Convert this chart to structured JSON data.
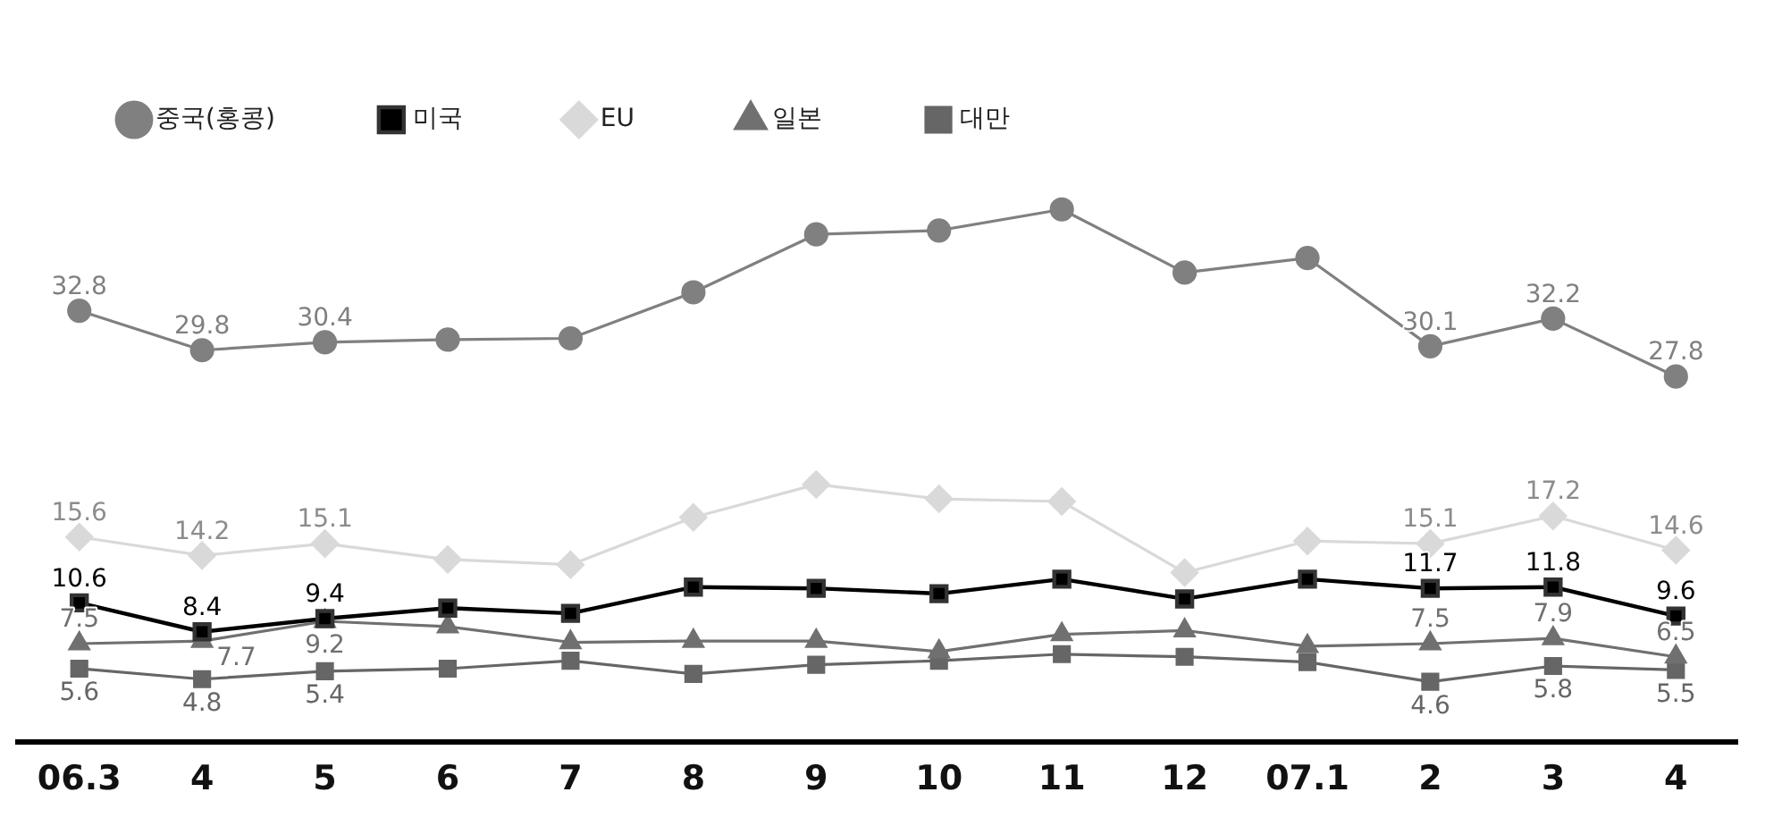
{
  "chart_data": {
    "type": "line",
    "categories": [
      "06.3",
      "4",
      "5",
      "6",
      "7",
      "8",
      "9",
      "10",
      "11",
      "12",
      "07.1",
      "2",
      "3",
      "4"
    ],
    "series": [
      {
        "name": "중국(홍콩)",
        "color": "#808080",
        "marker": "circle",
        "values": [
          32.8,
          29.8,
          30.4,
          30.6,
          30.7,
          34.2,
          38.6,
          38.9,
          40.5,
          35.7,
          36.8,
          30.1,
          32.2,
          27.8
        ],
        "value_labels": [
          "32.8",
          "29.8",
          "30.4",
          null,
          null,
          null,
          null,
          null,
          null,
          null,
          null,
          "30.1",
          "32.2",
          "27.8"
        ]
      },
      {
        "name": "미국",
        "color": "#000000",
        "marker": "square",
        "values": [
          10.6,
          8.4,
          9.4,
          10.2,
          9.8,
          11.8,
          11.7,
          11.3,
          12.4,
          10.9,
          12.4,
          11.7,
          11.8,
          9.6
        ],
        "value_labels": [
          "10.6",
          "8.4",
          "9.4",
          null,
          null,
          null,
          null,
          null,
          null,
          null,
          null,
          "11.7",
          "11.8",
          "9.6"
        ]
      },
      {
        "name": "EU",
        "color": "#d9d9d9",
        "marker": "diamond",
        "values": [
          15.6,
          14.2,
          15.1,
          13.9,
          13.5,
          17.1,
          19.6,
          18.5,
          18.3,
          12.9,
          15.3,
          15.1,
          17.2,
          14.6
        ],
        "value_labels": [
          "15.6",
          "14.2",
          "15.1",
          null,
          null,
          null,
          null,
          null,
          null,
          null,
          null,
          "15.1",
          "17.2",
          "14.6"
        ]
      },
      {
        "name": "일본",
        "color": "#707070",
        "marker": "triangle",
        "values": [
          7.5,
          7.7,
          9.2,
          8.8,
          7.6,
          7.7,
          7.7,
          6.9,
          8.2,
          8.5,
          7.3,
          7.5,
          7.9,
          6.5
        ],
        "value_labels": [
          "7.5",
          "7.7",
          "9.2",
          null,
          null,
          null,
          null,
          null,
          null,
          null,
          null,
          "7.5",
          "7.9",
          "6.5"
        ]
      },
      {
        "name": "대만",
        "color": "#666666",
        "marker": "square",
        "values": [
          5.6,
          4.8,
          5.4,
          5.6,
          6.2,
          5.2,
          5.9,
          6.2,
          6.7,
          6.5,
          6.1,
          4.6,
          5.8,
          5.5
        ],
        "value_labels": [
          "5.6",
          "4.8",
          "5.4",
          null,
          null,
          null,
          null,
          null,
          null,
          null,
          null,
          "4.6",
          "5.8",
          "5.5"
        ]
      }
    ],
    "tick_labels": "x",
    "grid": false,
    "legend": "top left",
    "line_style": "solid"
  }
}
